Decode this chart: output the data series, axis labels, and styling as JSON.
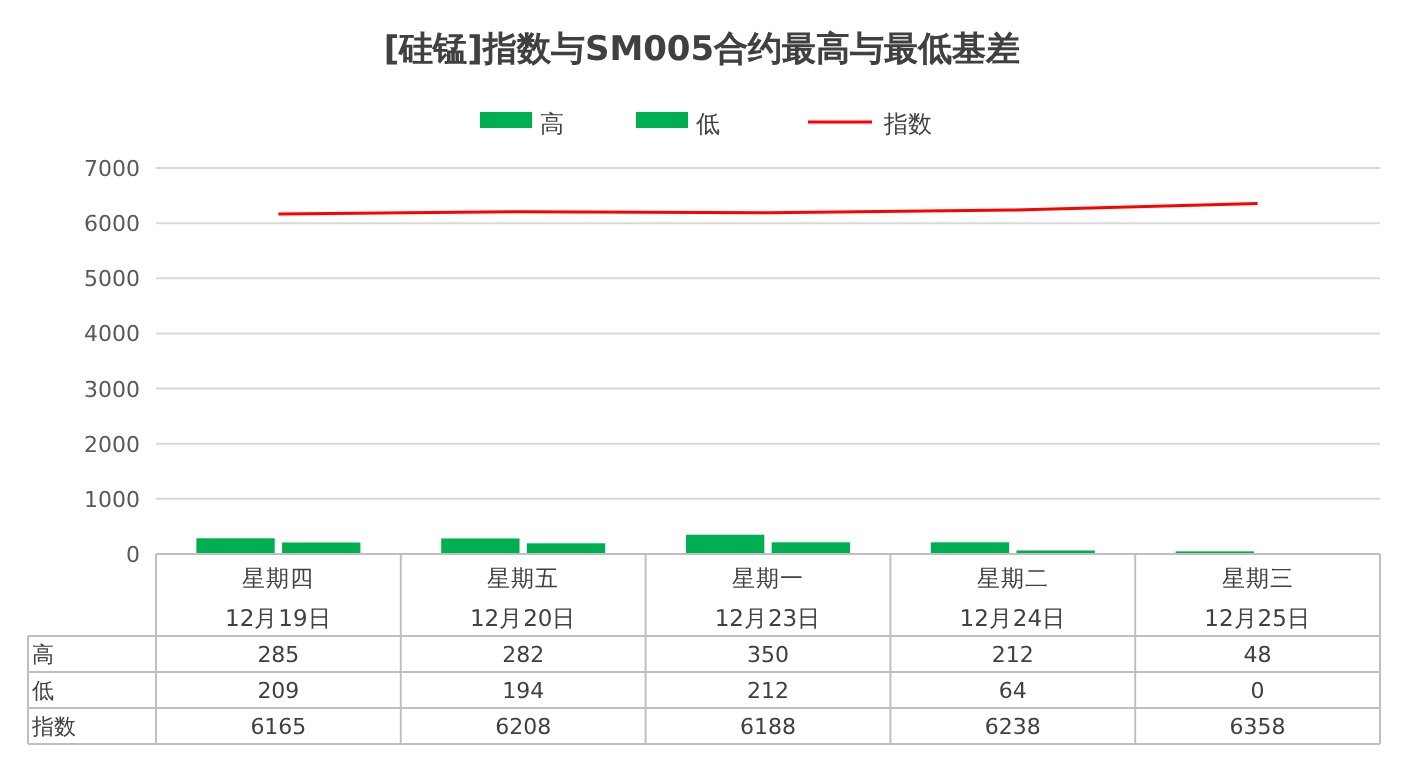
{
  "chart_data": {
    "type": "bar",
    "title": "[硅锰]指数与SM005合约最高与最低基差",
    "categories": [
      "星期四\n12月19日",
      "星期五\n12月20日",
      "星期一\n12月23日",
      "星期二\n12月24日",
      "星期三\n12月25日"
    ],
    "series": [
      {
        "name": "高",
        "color": "#00b050",
        "values": [
          285,
          282,
          350,
          212,
          48
        ]
      },
      {
        "name": "低",
        "color": "#00b050",
        "values": [
          209,
          194,
          212,
          64,
          0
        ]
      },
      {
        "name": "指数",
        "type": "line",
        "color": "#ff0000",
        "values": [
          6165,
          6208,
          6188,
          6238,
          6358
        ]
      }
    ],
    "ylim": [
      0,
      7000
    ],
    "yticks": [
      0,
      1000,
      2000,
      3000,
      4000,
      5000,
      6000,
      7000
    ],
    "grid": "y",
    "legend": "top",
    "data_labels": true
  }
}
